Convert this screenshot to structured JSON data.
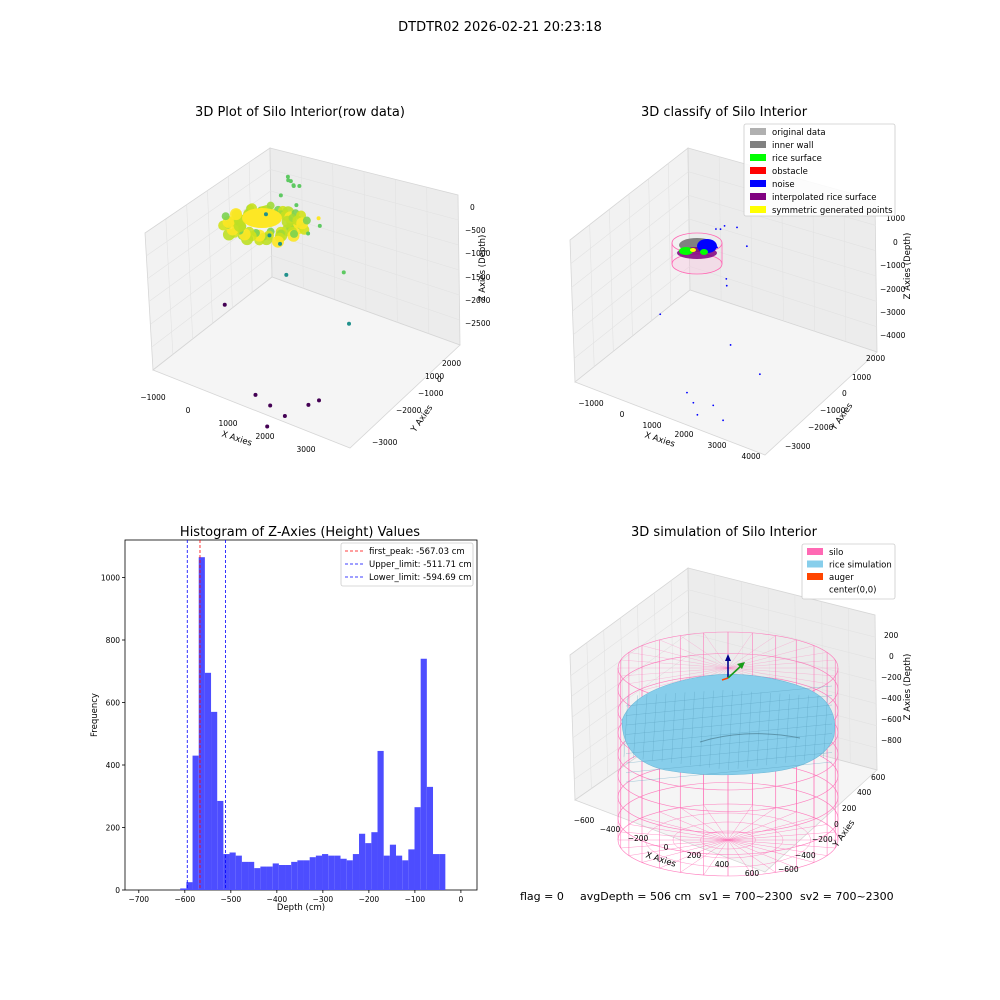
{
  "figure_title": "DTDTR02 2026-02-21 20:23:18",
  "colors": {
    "hist_bar": "#4d4dff",
    "first_peak_line": "#ff0000",
    "limit_line": "#0000ff",
    "silo": "#ff69b4",
    "rice_simulation": "#87ceeb",
    "auger": "#ff4500"
  },
  "status": {
    "flag": "flag = 0",
    "avg_depth": "avgDepth = 506 cm",
    "sv1": "sv1 = 700~2300",
    "sv2": "sv2 = 700~2300"
  },
  "chart_data": [
    {
      "type": "scatter",
      "projection": "3d",
      "title": "3D Plot of Silo Interior(row data)",
      "xlabel": "X Axies",
      "ylabel": "Y Axies",
      "zlabel": "Z Axies (Depth)",
      "x_ticks": [
        "−1000",
        "0",
        "1000",
        "2000",
        "3000"
      ],
      "y_ticks": [
        "−3000",
        "−2000",
        "−1000",
        "0",
        "1000",
        "2000"
      ],
      "z_ticks": [
        "−2500",
        "−2000",
        "−1500",
        "−1000",
        "−500",
        "0"
      ],
      "xlim": [
        -1000,
        3500
      ],
      "ylim": [
        -3000,
        2500
      ],
      "zlim": [
        -2800,
        100
      ],
      "colormap": "viridis (by depth)",
      "points": [
        {
          "x": 550,
          "y": 350,
          "z": -400
        },
        {
          "x": 650,
          "y": 300,
          "z": -420
        },
        {
          "x": 750,
          "y": 250,
          "z": -450
        },
        {
          "x": 500,
          "y": 450,
          "z": -500
        },
        {
          "x": 800,
          "y": 400,
          "z": -480
        },
        {
          "x": 600,
          "y": 500,
          "z": -560
        },
        {
          "x": 350,
          "y": 400,
          "z": -760
        },
        {
          "x": 900,
          "y": 100,
          "z": -650
        },
        {
          "x": 1900,
          "y": -700,
          "z": -300
        },
        {
          "x": 1700,
          "y": -300,
          "z": -600
        },
        {
          "x": 1300,
          "y": -100,
          "z": -900
        },
        {
          "x": -300,
          "y": 900,
          "z": -1400
        },
        {
          "x": -100,
          "y": 700,
          "z": -1600
        },
        {
          "x": 100,
          "y": 800,
          "z": -1700
        },
        {
          "x": 1000,
          "y": -500,
          "z": -1500
        },
        {
          "x": 2800,
          "y": -1200,
          "z": -700
        },
        {
          "x": 3100,
          "y": -1500,
          "z": -1300
        },
        {
          "x": 1400,
          "y": -2500,
          "z": -2600
        },
        {
          "x": 1700,
          "y": -2400,
          "z": -2700
        },
        {
          "x": 2000,
          "y": -2300,
          "z": -2800
        },
        {
          "x": 2400,
          "y": -2000,
          "z": -2600
        },
        {
          "x": 2600,
          "y": -1900,
          "z": -2500
        },
        {
          "x": 1800,
          "y": -2700,
          "z": -2900
        },
        {
          "x": -900,
          "y": 200,
          "z": -2750
        }
      ]
    },
    {
      "type": "scatter",
      "projection": "3d",
      "title": "3D classify of Silo Interior",
      "xlabel": "X Axies",
      "ylabel": "Y Axies",
      "zlabel": "Z Axies (Depth)",
      "x_ticks": [
        "−1000",
        "0",
        "1000",
        "2000",
        "3000",
        "4000"
      ],
      "y_ticks": [
        "−3000",
        "−2000",
        "−1000",
        "0",
        "1000",
        "2000"
      ],
      "z_ticks": [
        "−4000",
        "−3000",
        "−2000",
        "−1000",
        "0",
        "1000"
      ],
      "xlim": [
        -1500,
        4500
      ],
      "ylim": [
        -3000,
        2500
      ],
      "zlim": [
        -4000,
        1200
      ],
      "legend": [
        {
          "label": "original data",
          "color": "#b0b0b0"
        },
        {
          "label": "inner wall",
          "color": "#808080"
        },
        {
          "label": "rice surface",
          "color": "#00ff00"
        },
        {
          "label": "obstacle",
          "color": "#ff0000"
        },
        {
          "label": "noise",
          "color": "#0000ff"
        },
        {
          "label": "interpolated rice surface",
          "color": "#800080"
        },
        {
          "label": "symmetric generated points",
          "color": "#ffff00"
        }
      ],
      "noise_points": [
        {
          "x": 2200,
          "y": -500,
          "z": -100
        },
        {
          "x": 2700,
          "y": -700,
          "z": -300
        },
        {
          "x": 800,
          "y": 700,
          "z": -1200
        },
        {
          "x": 500,
          "y": 900,
          "z": -1500
        },
        {
          "x": 100,
          "y": 1200,
          "z": -1800
        },
        {
          "x": 300,
          "y": 1000,
          "z": -2100
        },
        {
          "x": 1200,
          "y": 300,
          "z": -2400
        },
        {
          "x": 2400,
          "y": -1200,
          "z": -1000
        },
        {
          "x": 3600,
          "y": -2500,
          "z": -1600
        },
        {
          "x": 4200,
          "y": -2000,
          "z": -2400
        },
        {
          "x": -1000,
          "y": 200,
          "z": -3900
        },
        {
          "x": 1700,
          "y": -2000,
          "z": -3800
        },
        {
          "x": 2000,
          "y": -2100,
          "z": -3900
        },
        {
          "x": 2300,
          "y": -2300,
          "z": -4000
        },
        {
          "x": 2600,
          "y": -2000,
          "z": -3800
        },
        {
          "x": 3100,
          "y": -2200,
          "z": -3900
        }
      ]
    },
    {
      "type": "bar",
      "subtype": "histogram",
      "title": "Histogram of Z-Axies (Height) Values",
      "xlabel": "Depth (cm)",
      "ylabel": "Frequency",
      "xlim": [
        -730,
        35
      ],
      "ylim": [
        0,
        1120
      ],
      "x_ticks": [
        -700,
        -600,
        -500,
        -400,
        -300,
        -200,
        -100,
        0
      ],
      "x_tick_labels": [
        "−700",
        "−600",
        "−500",
        "−400",
        "−300",
        "−200",
        "−100",
        "0"
      ],
      "y_ticks": [
        0,
        200,
        400,
        600,
        800,
        1000
      ],
      "y_tick_labels": [
        "0",
        "200",
        "400",
        "600",
        "800",
        "1000"
      ],
      "bin_start": -610,
      "bin_width": 13.4,
      "counts": [
        5,
        25,
        430,
        1065,
        695,
        570,
        285,
        115,
        120,
        110,
        90,
        90,
        70,
        75,
        75,
        85,
        80,
        80,
        90,
        95,
        95,
        105,
        110,
        115,
        110,
        110,
        100,
        95,
        115,
        180,
        150,
        185,
        445,
        110,
        145,
        110,
        95,
        130,
        265,
        740,
        330,
        115,
        115
      ],
      "vlines": [
        {
          "label": "first_peak: -567.03 cm",
          "x": -567.03,
          "color": "#ff0000"
        },
        {
          "label": "Upper_limit: -511.71 cm",
          "x": -511.71,
          "color": "#0000ff"
        },
        {
          "label": "Lower_limit: -594.69 cm",
          "x": -594.69,
          "color": "#0000ff"
        }
      ],
      "legend_position": "top-right"
    },
    {
      "type": "surface",
      "projection": "3d",
      "title": "3D simulation of Silo Interior",
      "xlabel": "X Axies",
      "ylabel": "Y Axies",
      "zlabel": "Z Axies (Depth)",
      "x_ticks": [
        "−600",
        "−400",
        "−200",
        "0",
        "200",
        "400",
        "600"
      ],
      "y_ticks": [
        "−600",
        "−400",
        "−200",
        "0",
        "200",
        "400",
        "600"
      ],
      "z_ticks": [
        "−800",
        "−600",
        "−400",
        "−200",
        "0",
        "200"
      ],
      "xlim": [
        -700,
        700
      ],
      "ylim": [
        -700,
        700
      ],
      "zlim": [
        -1000,
        300
      ],
      "legend": [
        {
          "label": "silo",
          "color": "#ff69b4"
        },
        {
          "label": "rice simulation",
          "color": "#87ceeb"
        },
        {
          "label": "auger",
          "color": "#ff4500"
        },
        {
          "label": "center(0,0)",
          "color": ""
        }
      ],
      "legend_position": "top-right"
    }
  ]
}
